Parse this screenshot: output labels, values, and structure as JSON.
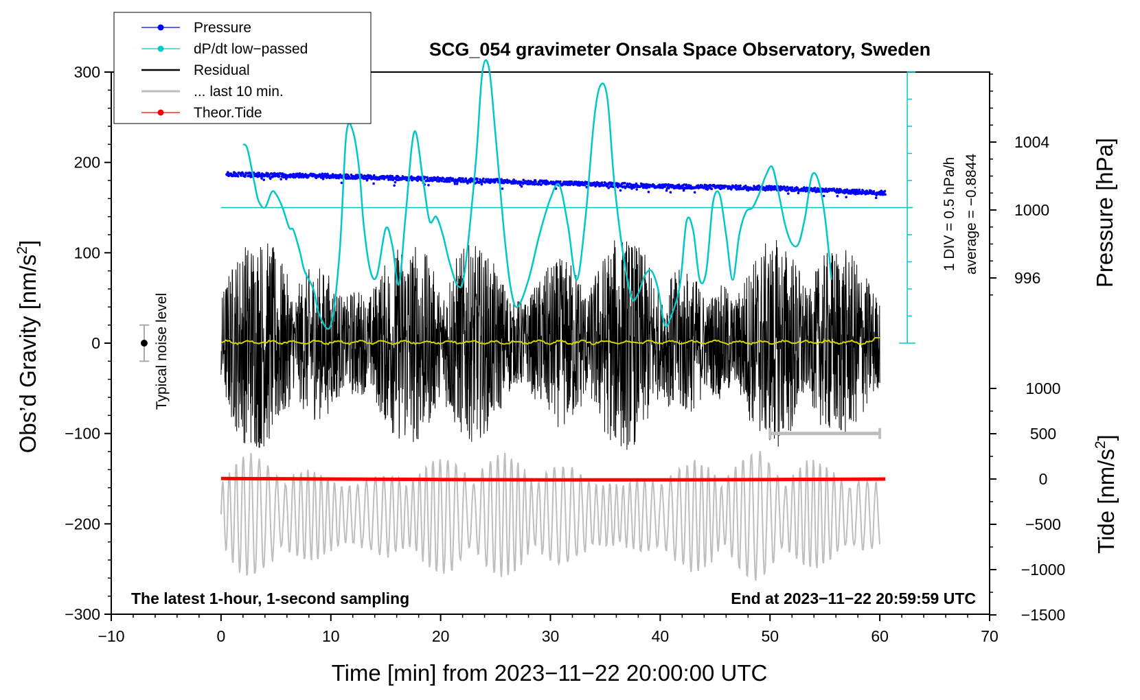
{
  "chart_data": {
    "type": "line",
    "title": "SCG_054 gravimeter Onsala Space Observatory, Sweden",
    "xlabel": "Time [min] from 2023−11−22 20:00:00 UTC",
    "ylabel_left_prefix": "Obs’d Gravity [nm/s",
    "ylabel_left_sup": "2",
    "ylabel_left_suffix": "]",
    "ylabel_right_pressure": "Pressure [hPa]",
    "ylabel_right_tide_prefix": "Tide [nm/s",
    "ylabel_right_tide_sup": "2",
    "ylabel_right_tide_suffix": "]",
    "xlim": [
      -10,
      70
    ],
    "ylim": [
      -300,
      300
    ],
    "x_ticks": [
      "−10",
      "0",
      "10",
      "20",
      "30",
      "40",
      "50",
      "60",
      "70"
    ],
    "y_ticks": [
      "−300",
      "−200",
      "−100",
      "0",
      "100",
      "200",
      "300"
    ],
    "pressure_ticks": [
      "996",
      "1000",
      "1004"
    ],
    "tide_ticks": [
      "−1500",
      "−1000",
      "−500",
      "0",
      "500",
      "1000"
    ],
    "legend": [
      {
        "label": "Pressure",
        "color": "#0000ff",
        "marker": true
      },
      {
        "label": "dP/dt low−passed",
        "color": "#00c8c8",
        "marker": true
      },
      {
        "label": "Residual",
        "color": "#000000",
        "marker": false
      },
      {
        "label": "... last 10 min.",
        "color": "#bebebe",
        "marker": false
      },
      {
        "label": "Theor.Tide",
        "color": "#ff0000",
        "marker": true
      }
    ],
    "noise_label": "Typical noise level",
    "dpdt_scale": "1 DIV = 0.5 hPa/h",
    "dpdt_average": "average = −0.8844",
    "bottom_left_note": "The latest 1-hour, 1-second sampling",
    "bottom_right_note": "End at 2023−11−22 20:59:59 UTC",
    "pressure_series": {
      "x": [
        0.5,
        10,
        20,
        30,
        40,
        50,
        60.5
      ],
      "values": [
        1002.1,
        1002.0,
        1001.8,
        1001.6,
        1001.4,
        1001.3,
        1001.0
      ]
    },
    "dpdt_series": {
      "x": [
        2.0,
        2.4,
        3.0,
        3.4,
        4.0,
        4.6,
        5.0,
        5.6,
        6.2,
        6.6,
        7.2,
        7.6,
        8.4,
        9.0,
        10.0,
        10.8,
        11.4,
        12.0,
        12.6,
        13.0,
        13.6,
        14.2,
        15.0,
        15.6,
        16.2,
        16.8,
        17.6,
        18.4,
        19.0,
        19.6,
        20.2,
        20.8,
        21.6,
        22.2,
        23.2,
        23.8,
        24.4,
        25.0,
        25.8,
        26.4,
        27.0,
        28.0,
        29.0,
        30.0,
        30.8,
        31.6,
        32.4,
        33.2,
        34.0,
        34.6,
        35.2,
        35.8,
        36.6,
        37.4,
        38.0,
        38.6,
        39.2,
        39.8,
        40.4,
        41.0,
        41.8,
        42.4,
        43.0,
        43.6,
        44.2,
        44.8,
        45.4,
        46.0,
        46.6,
        47.2,
        47.8,
        48.4,
        49.0,
        49.6,
        50.2,
        50.8,
        51.4,
        52.0,
        52.6,
        53.2,
        53.8,
        54.4,
        55.0,
        55.6
      ],
      "values": [
        220,
        215,
        180,
        158,
        150,
        167,
        165,
        150,
        128,
        125,
        100,
        80,
        60,
        30,
        20,
        100,
        230,
        235,
        190,
        130,
        80,
        75,
        127,
        108,
        65,
        140,
        234,
        180,
        135,
        140,
        120,
        90,
        63,
        80,
        200,
        300,
        308,
        230,
        120,
        60,
        40,
        70,
        120,
        160,
        175,
        130,
        70,
        140,
        250,
        286,
        270,
        180,
        100,
        50,
        55,
        75,
        80,
        60,
        20,
        30,
        65,
        135,
        125,
        70,
        80,
        155,
        165,
        120,
        70,
        120,
        145,
        150,
        165,
        185,
        195,
        165,
        130,
        110,
        110,
        140,
        185,
        180,
        140,
        70
      ]
    },
    "residual_series": {
      "x_range": [
        0,
        60
      ],
      "amplitude": 120,
      "values_description_only": "noise about 0"
    },
    "last10_series": {
      "x_range": [
        0,
        60
      ],
      "offset_tide_units": -400,
      "amplitude_tide_units": 700
    },
    "tide_series": {
      "x": [
        0,
        10,
        20,
        30,
        40,
        50,
        60.5
      ],
      "values": [
        5,
        0,
        -5,
        -10,
        -10,
        -5,
        0
      ]
    },
    "noise_bar": {
      "x": -7,
      "center": 0,
      "half_range": 20
    },
    "last10_bar": {
      "x_range": [
        50,
        60
      ],
      "y": -100
    }
  }
}
